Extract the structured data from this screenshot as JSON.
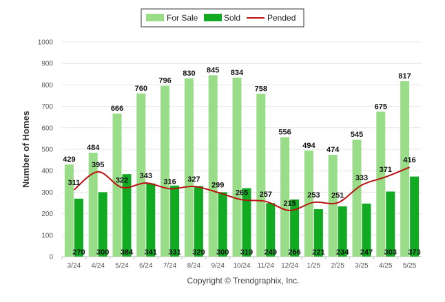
{
  "chart_data": {
    "type": "bar",
    "categories": [
      "3/24",
      "4/24",
      "5/24",
      "6/24",
      "7/24",
      "8/24",
      "9/24",
      "10/24",
      "11/24",
      "12/24",
      "1/25",
      "2/25",
      "3/25",
      "4/25",
      "5/25"
    ],
    "series": [
      {
        "name": "For Sale",
        "type": "bar",
        "color": "#99dd88",
        "values": [
          429,
          484,
          666,
          760,
          796,
          830,
          845,
          834,
          758,
          556,
          494,
          474,
          545,
          675,
          817
        ]
      },
      {
        "name": "Sold",
        "type": "bar",
        "color": "#11aa22",
        "values": [
          270,
          300,
          384,
          341,
          331,
          329,
          300,
          319,
          249,
          266,
          221,
          234,
          247,
          303,
          373
        ]
      },
      {
        "name": "Pended",
        "type": "line",
        "color": "#bb1111",
        "values": [
          311,
          395,
          322,
          343,
          316,
          327,
          299,
          265,
          257,
          215,
          253,
          251,
          333,
          371,
          416
        ]
      }
    ],
    "ylabel": "Number of Homes",
    "xlabel": "",
    "ylim": [
      0,
      1000
    ],
    "yticks": [
      0,
      100,
      200,
      300,
      400,
      500,
      600,
      700,
      800,
      900,
      1000
    ],
    "grid": true,
    "legend_position": "top-center",
    "credit": "Copyright © Trendgraphix, Inc."
  }
}
